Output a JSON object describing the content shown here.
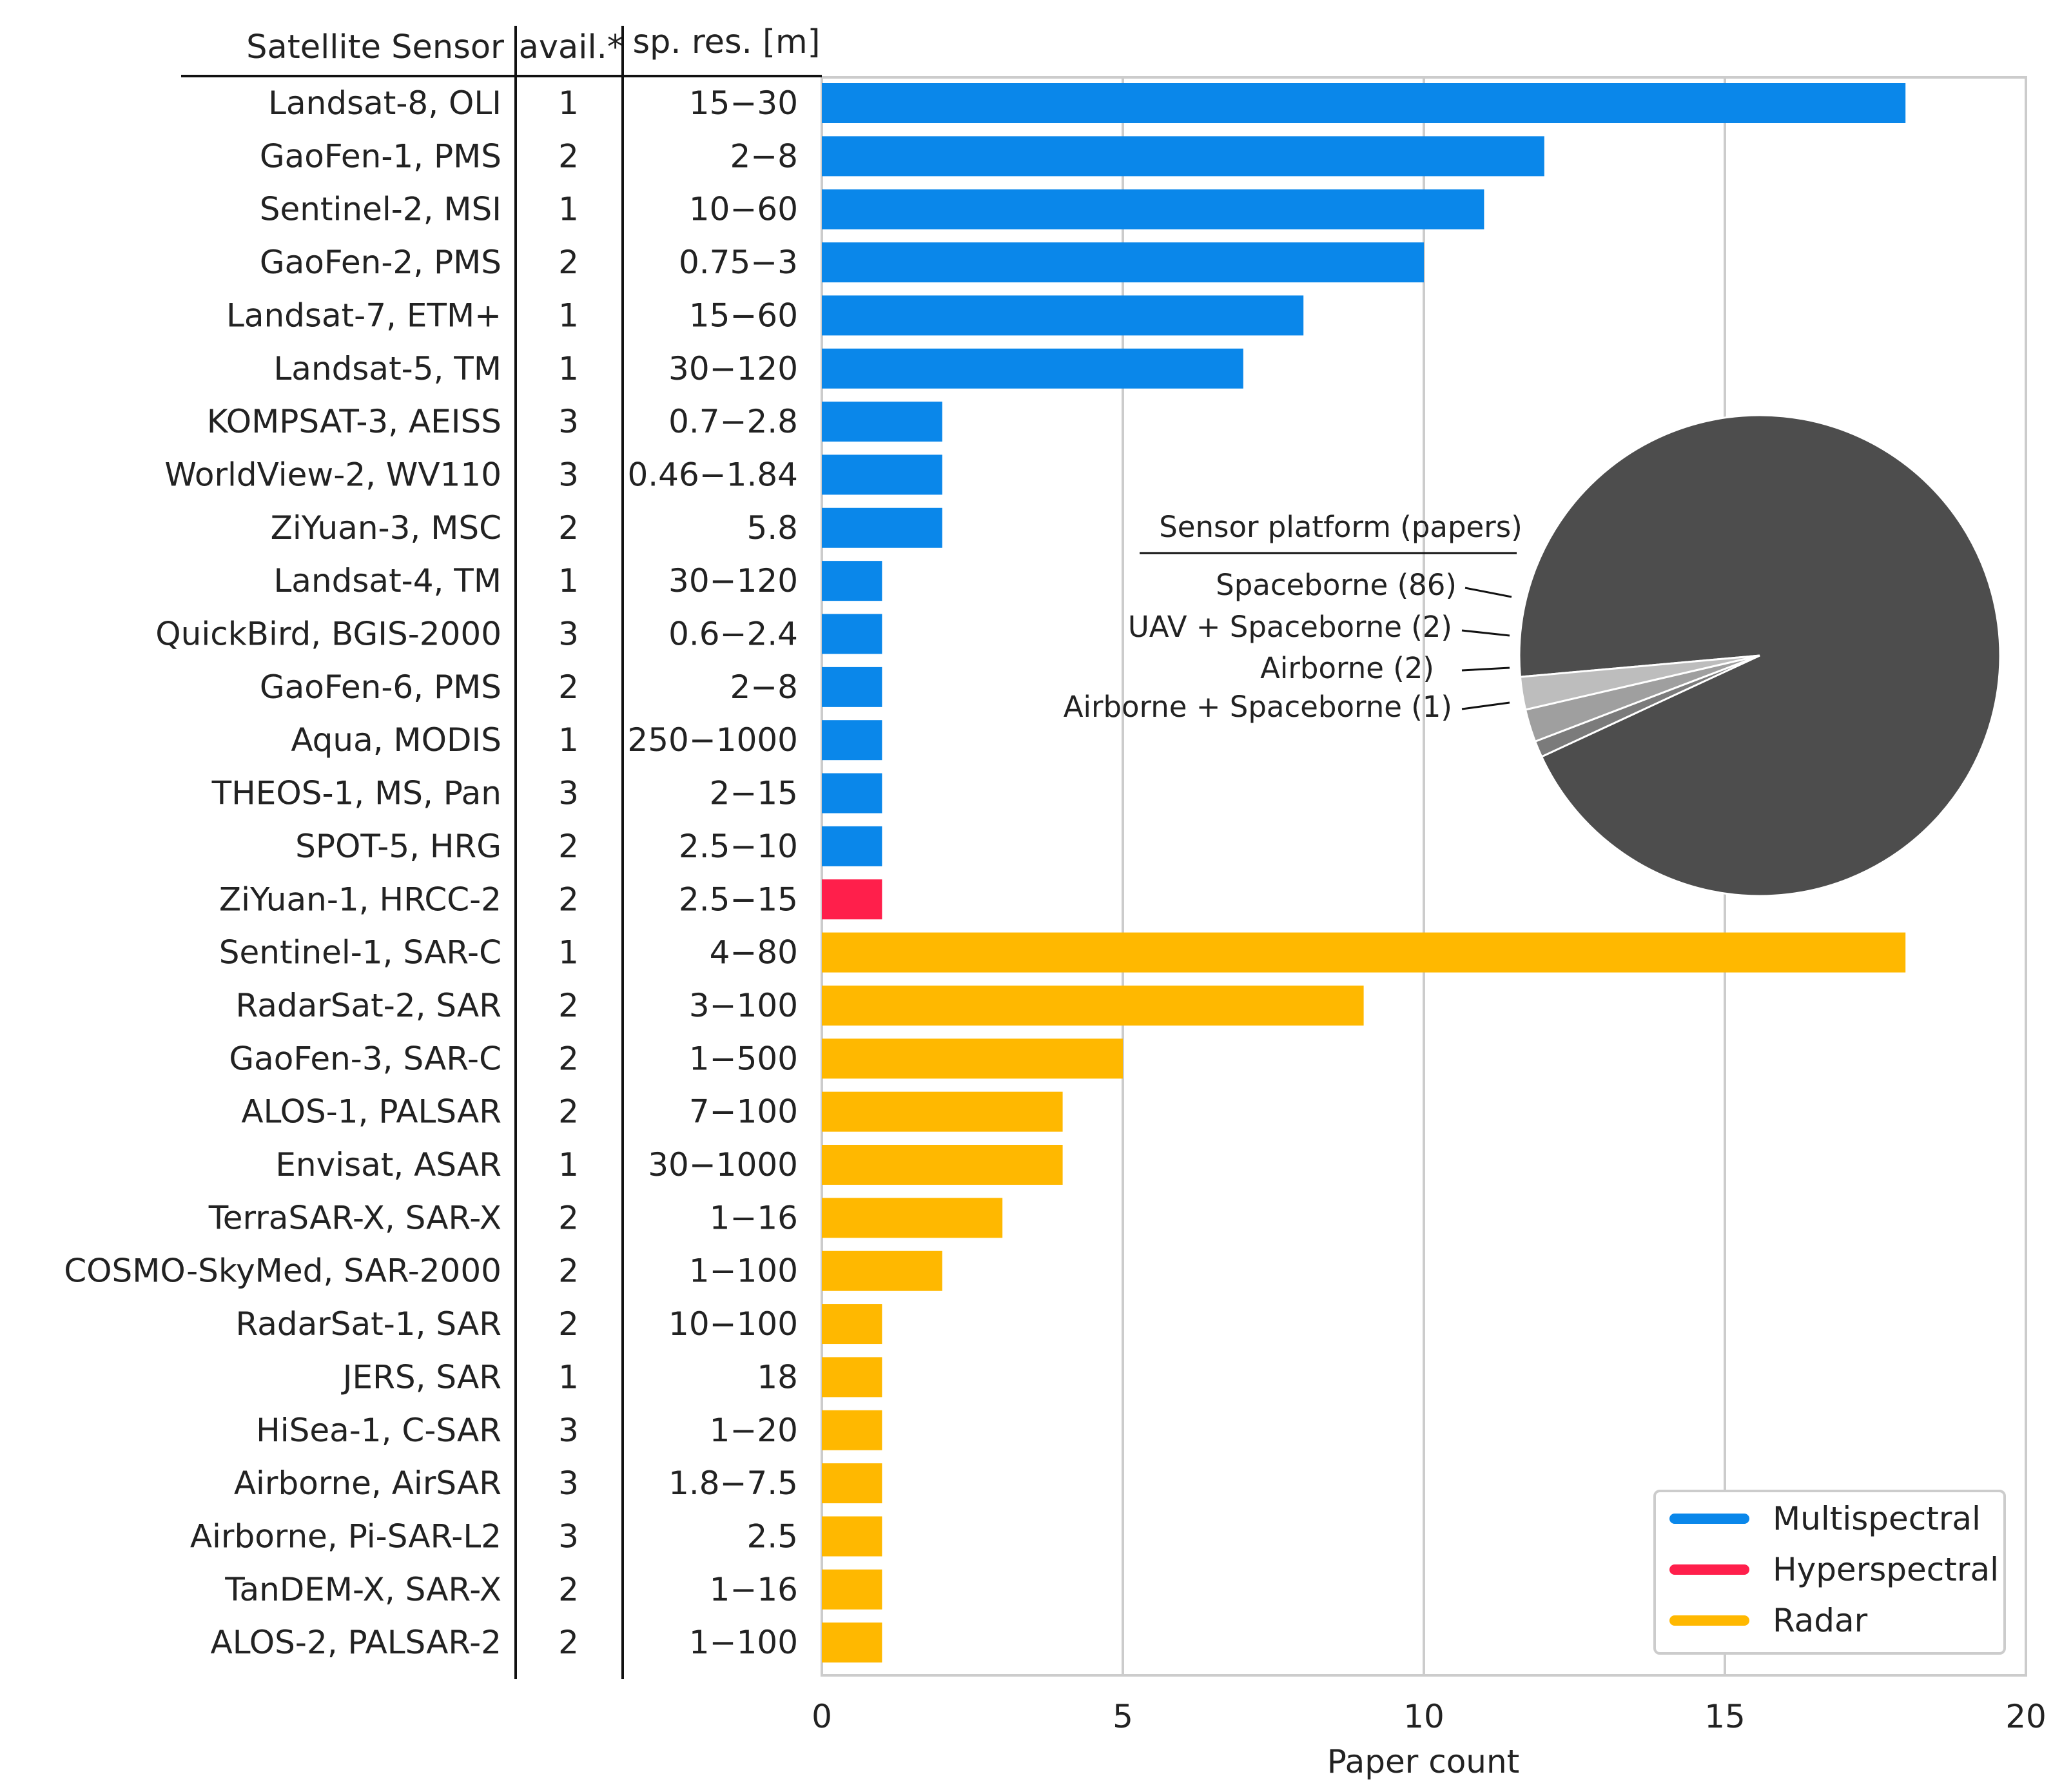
{
  "chart_data": {
    "type": "bar",
    "orientation": "horizontal",
    "title": "",
    "xlabel": "Paper count",
    "ylabel": "",
    "xlim": [
      0,
      20
    ],
    "xticks": [
      0,
      5,
      10,
      15,
      20
    ],
    "grid": true,
    "table_headers": {
      "sensor": "Satellite Sensor",
      "avail": "avail.*",
      "res": "sp. res. [m]"
    },
    "categories": [
      "Landsat-8, OLI",
      "GaoFen-1, PMS",
      "Sentinel-2, MSI",
      "GaoFen-2, PMS",
      "Landsat-7, ETM+",
      "Landsat-5, TM",
      "KOMPSAT-3, AEISS",
      "WorldView-2, WV110",
      "ZiYuan-3, MSC",
      "Landsat-4, TM",
      "QuickBird, BGIS-2000",
      "GaoFen-6, PMS",
      "Aqua, MODIS",
      "THEOS-1, MS, Pan",
      "SPOT-5, HRG",
      "ZiYuan-1, HRCC-2",
      "Sentinel-1, SAR-C",
      "RadarSat-2, SAR",
      "GaoFen-3, SAR-C",
      "ALOS-1, PALSAR",
      "Envisat, ASAR",
      "TerraSAR-X, SAR-X",
      "COSMO-SkyMed, SAR-2000",
      "RadarSat-1, SAR",
      "JERS, SAR",
      "HiSea-1, C-SAR",
      "Airborne, AirSAR",
      "Airborne, Pi-SAR-L2",
      "TanDEM-X, SAR-X",
      "ALOS-2, PALSAR-2"
    ],
    "avail": [
      "1",
      "2",
      "1",
      "2",
      "1",
      "1",
      "3",
      "3",
      "2",
      "1",
      "3",
      "2",
      "1",
      "3",
      "2",
      "2",
      "1",
      "2",
      "2",
      "2",
      "1",
      "2",
      "2",
      "2",
      "1",
      "3",
      "3",
      "3",
      "2",
      "2"
    ],
    "spatial_resolution": [
      "15−30",
      "2−8",
      "10−60",
      "0.75−3",
      "15−60",
      "30−120",
      "0.7−2.8",
      "0.46−1.84",
      "5.8",
      "30−120",
      "0.6−2.4",
      "2−8",
      "250−1000",
      "2−15",
      "2.5−10",
      "2.5−15",
      "4−80",
      "3−100",
      "1−500",
      "7−100",
      "30−1000",
      "1−16",
      "1−100",
      "10−100",
      "18",
      "1−20",
      "1.8−7.5",
      "2.5",
      "1−16",
      "1−100"
    ],
    "values": [
      18,
      12,
      11,
      10,
      8,
      7,
      2,
      2,
      2,
      1,
      1,
      1,
      1,
      1,
      1,
      1,
      18,
      9,
      5,
      4,
      4,
      3,
      2,
      1,
      1,
      1,
      1,
      1,
      1,
      1
    ],
    "sensor_type": [
      "Multispectral",
      "Multispectral",
      "Multispectral",
      "Multispectral",
      "Multispectral",
      "Multispectral",
      "Multispectral",
      "Multispectral",
      "Multispectral",
      "Multispectral",
      "Multispectral",
      "Multispectral",
      "Multispectral",
      "Multispectral",
      "Multispectral",
      "Hyperspectral",
      "Radar",
      "Radar",
      "Radar",
      "Radar",
      "Radar",
      "Radar",
      "Radar",
      "Radar",
      "Radar",
      "Radar",
      "Radar",
      "Radar",
      "Radar",
      "Radar"
    ],
    "legend": {
      "position": "lower-right",
      "entries": [
        {
          "name": "Multispectral",
          "color": "#0a87ea"
        },
        {
          "name": "Hyperspectral",
          "color": "#ff1f4b"
        },
        {
          "name": "Radar",
          "color": "#ffb800"
        }
      ]
    },
    "inset_pie": {
      "type": "pie",
      "title": "Sensor platform (papers)",
      "slices": [
        {
          "label": "Spaceborne (86)",
          "value": 86,
          "color": "#4d4d4d"
        },
        {
          "label": "UAV + Spaceborne (2)",
          "value": 2,
          "color": "#7b7b7b"
        },
        {
          "label": "Airborne (2)",
          "value": 2,
          "color": "#9f9f9f"
        },
        {
          "label": "Airborne + Spaceborne (1)",
          "value": 1,
          "color": "#bdbdbd"
        }
      ]
    }
  }
}
